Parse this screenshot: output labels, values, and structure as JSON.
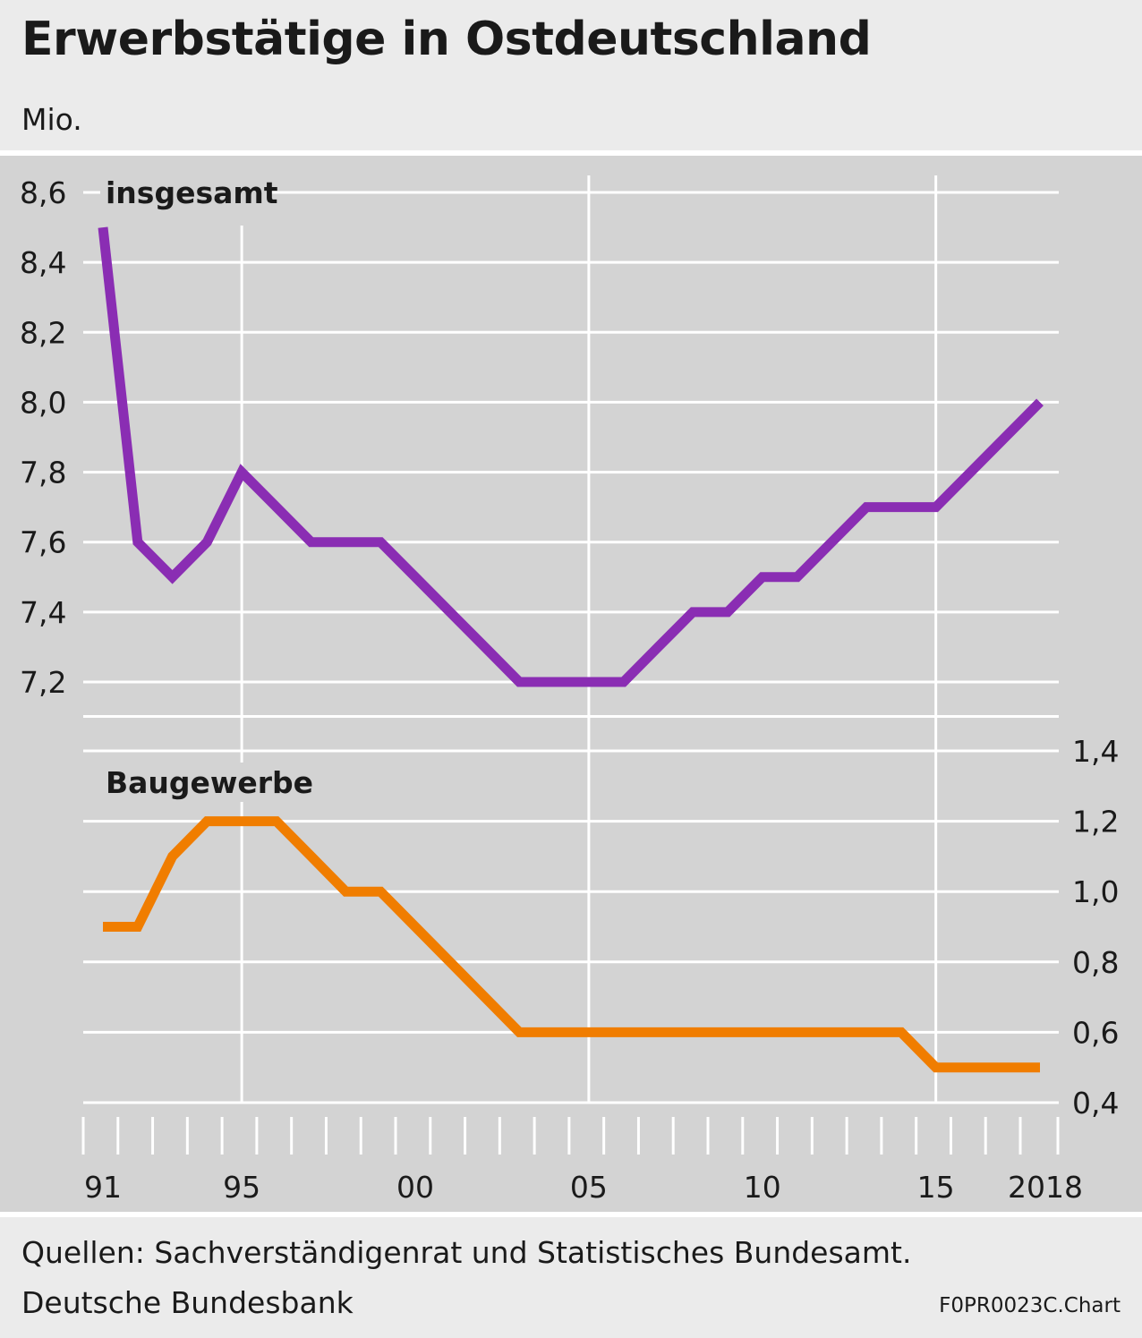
{
  "title": "Erwerbstätige in Ostdeutschland",
  "unit": "Mio.",
  "footer": {
    "source_line1": "Quellen: Sachverständigenrat und Statistisches Bundesamt.",
    "source_line2": "Deutsche Bundesbank",
    "code": "F0PR0023C.Chart"
  },
  "colors": {
    "insgesamt": "#8a2db3",
    "baugewerbe": "#f07d00",
    "grid": "#ffffff",
    "plot_bg": "#d3d3d3",
    "page_bg": "#ebebeb"
  },
  "chart_data": {
    "type": "line",
    "x_range": [
      1991,
      2018
    ],
    "x_tick_labels": [
      {
        "year": 1991,
        "label": "91"
      },
      {
        "year": 1995,
        "label": "95"
      },
      {
        "year": 2000,
        "label": "00"
      },
      {
        "year": 2005,
        "label": "05"
      },
      {
        "year": 2010,
        "label": "10"
      },
      {
        "year": 2015,
        "label": "15"
      },
      {
        "year": 2018,
        "label": "2018"
      }
    ],
    "x_vertical_gridlines": [
      1995,
      2005,
      2015
    ],
    "grid": true,
    "panels": [
      {
        "name": "insgesamt",
        "axis_side": "left",
        "ylim": [
          7.2,
          8.6
        ],
        "y_ticks": [
          "7,2",
          "7,4",
          "7,6",
          "7,8",
          "8,0",
          "8,2",
          "8,4",
          "8,6"
        ],
        "series": {
          "name": "insgesamt",
          "x": [
            1991,
            1992,
            1993,
            1994,
            1995,
            1996,
            1997,
            1998,
            1999,
            2000,
            2001,
            2002,
            2003,
            2004,
            2005,
            2006,
            2007,
            2008,
            2009,
            2010,
            2011,
            2012,
            2013,
            2014,
            2015,
            2016,
            2017,
            2018
          ],
          "values": [
            8.5,
            7.6,
            7.5,
            7.6,
            7.8,
            7.7,
            7.6,
            7.6,
            7.6,
            7.5,
            7.4,
            7.3,
            7.2,
            7.2,
            7.2,
            7.2,
            7.3,
            7.4,
            7.4,
            7.5,
            7.5,
            7.6,
            7.7,
            7.7,
            7.7,
            7.8,
            7.9,
            8.0
          ]
        }
      },
      {
        "name": "Baugewerbe",
        "axis_side": "right",
        "ylim": [
          0.4,
          1.4
        ],
        "y_ticks": [
          "0,4",
          "0,6",
          "0,8",
          "1,0",
          "1,2",
          "1,4"
        ],
        "series": {
          "name": "Baugewerbe",
          "x": [
            1991,
            1992,
            1993,
            1994,
            1995,
            1996,
            1997,
            1998,
            1999,
            2000,
            2001,
            2002,
            2003,
            2004,
            2005,
            2006,
            2007,
            2008,
            2009,
            2010,
            2011,
            2012,
            2013,
            2014,
            2015,
            2016,
            2017,
            2018
          ],
          "values": [
            0.9,
            0.9,
            1.1,
            1.2,
            1.2,
            1.2,
            1.1,
            1.0,
            1.0,
            0.9,
            0.8,
            0.7,
            0.6,
            0.6,
            0.6,
            0.6,
            0.6,
            0.6,
            0.6,
            0.6,
            0.6,
            0.6,
            0.6,
            0.6,
            0.5,
            0.5,
            0.5,
            0.5
          ]
        }
      }
    ]
  }
}
